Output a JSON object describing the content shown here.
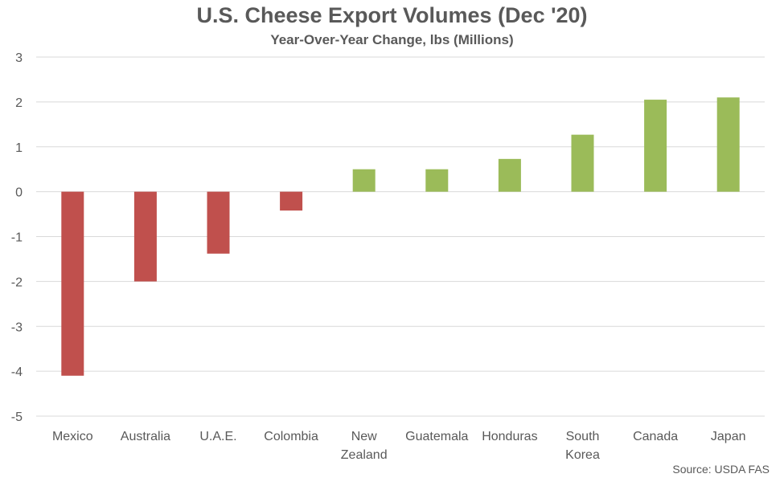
{
  "chart_data": {
    "type": "bar",
    "title": "U.S. Cheese Export Volumes (Dec '20)",
    "subtitle": "Year-Over-Year Change, lbs (Millions)",
    "xlabel": "",
    "ylabel": "",
    "ylim": [
      -5,
      3
    ],
    "yticks": [
      3,
      2,
      1,
      0,
      -1,
      -2,
      -3,
      -4,
      -5
    ],
    "categories": [
      "Mexico",
      "Australia",
      "U.A.E.",
      "Colombia",
      "New Zealand",
      "Guatemala",
      "Honduras",
      "South Korea",
      "Canada",
      "Japan"
    ],
    "category_lines": [
      [
        "Mexico"
      ],
      [
        "Australia"
      ],
      [
        "U.A.E."
      ],
      [
        "Colombia"
      ],
      [
        "New",
        "Zealand"
      ],
      [
        "Guatemala"
      ],
      [
        "Honduras"
      ],
      [
        "South",
        "Korea"
      ],
      [
        "Canada"
      ],
      [
        "Japan"
      ]
    ],
    "values": [
      -4.1,
      -2.0,
      -1.38,
      -0.42,
      0.5,
      0.5,
      0.73,
      1.27,
      2.05,
      2.1
    ],
    "colors": {
      "negative": "#c0504d",
      "positive": "#9bbb59",
      "grid": "#d9d9d9",
      "text": "#595959"
    },
    "grid": true,
    "legend": "none",
    "source": "Source: USDA FAS"
  }
}
